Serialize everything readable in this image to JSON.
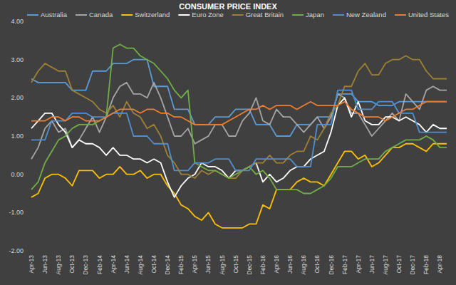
{
  "chart_data": {
    "type": "line",
    "title": "CONSUMER PRICE INDEX",
    "legend": "top",
    "grid": false,
    "categories": [
      "Apr-13",
      null,
      "Jun-13",
      null,
      "Aug-13",
      null,
      "Oct-13",
      null,
      "Dec-13",
      null,
      "Feb-14",
      null,
      "Apr-14",
      null,
      "Jun-14",
      null,
      "Aug-14",
      null,
      "Oct-14",
      null,
      "Dec-14",
      null,
      "Feb-15",
      null,
      "Apr-15",
      null,
      "Jun-15",
      null,
      "Aug-15",
      null,
      "Oct-15",
      null,
      "Dec-15",
      null,
      "Feb-16",
      null,
      "Apr-16",
      null,
      "Jun-16",
      null,
      "Aug-16",
      null,
      "Oct-16",
      null,
      "Dec-16",
      null,
      "Feb-17",
      null,
      "Apr-17",
      null,
      "Jun-17",
      null,
      "Aug-17",
      null,
      "Oct-17",
      null,
      "Dec-17",
      null,
      "Feb-18",
      null,
      "Apr-18",
      null
    ],
    "ylim": [
      -2,
      4
    ],
    "yticks": [
      {
        "value": 4,
        "label": "4.00"
      },
      {
        "value": 3,
        "label": "3.00"
      },
      {
        "value": 2,
        "label": "2.00"
      },
      {
        "value": 1,
        "label": "1.00"
      },
      {
        "value": 0,
        "label": "0.00"
      },
      {
        "value": -1,
        "label": "-1.00"
      },
      {
        "value": -2,
        "label": "-2.00"
      }
    ],
    "series": [
      {
        "name": "Australia",
        "color": "#5b9bd5",
        "values": [
          2.5,
          2.4,
          2.4,
          2.4,
          2.4,
          2.4,
          2.2,
          2.2,
          2.2,
          2.7,
          2.7,
          2.7,
          2.9,
          2.9,
          2.9,
          3.0,
          3.0,
          3.0,
          2.3,
          2.3,
          2.3,
          1.7,
          1.7,
          1.7,
          1.3,
          1.3,
          1.3,
          1.5,
          1.5,
          1.5,
          1.7,
          1.7,
          1.7,
          1.3,
          1.3,
          1.3,
          1.0,
          1.0,
          1.0,
          1.3,
          1.3,
          1.3,
          1.5,
          1.5,
          1.5,
          2.1,
          2.1,
          2.1,
          1.9,
          1.9,
          1.9,
          1.8,
          1.8,
          1.8,
          1.9,
          1.9,
          1.9,
          1.9,
          1.9,
          1.9,
          1.9,
          1.9
        ]
      },
      {
        "name": "Canada",
        "color": "#a5a5a5",
        "values": [
          0.4,
          0.7,
          1.2,
          1.4,
          1.1,
          1.2,
          0.7,
          0.9,
          1.2,
          1.5,
          1.1,
          1.5,
          2.0,
          2.3,
          2.4,
          2.1,
          2.1,
          2.0,
          2.4,
          2.0,
          1.5,
          1.0,
          1.0,
          1.2,
          0.8,
          0.9,
          1.0,
          1.3,
          1.3,
          1.0,
          1.0,
          1.4,
          1.6,
          2.0,
          1.4,
          1.3,
          1.7,
          1.5,
          1.5,
          1.3,
          1.1,
          1.3,
          1.5,
          1.2,
          1.5,
          2.1,
          2.0,
          1.6,
          1.6,
          1.3,
          1.0,
          1.2,
          1.4,
          1.6,
          1.4,
          2.1,
          1.9,
          1.7,
          2.2,
          2.3,
          2.2,
          2.2
        ]
      },
      {
        "name": "Switzerland",
        "color": "#ffc000",
        "values": [
          -0.6,
          -0.5,
          -0.1,
          0.0,
          0.0,
          -0.1,
          -0.3,
          0.1,
          0.1,
          0.1,
          -0.1,
          0.0,
          0.0,
          0.2,
          0.0,
          0.0,
          0.1,
          -0.1,
          0.0,
          0.0,
          -0.3,
          -0.5,
          -0.8,
          -0.9,
          -1.1,
          -1.2,
          -1.0,
          -1.3,
          -1.4,
          -1.4,
          -1.4,
          -1.4,
          -1.3,
          -1.3,
          -0.8,
          -0.9,
          -0.4,
          -0.4,
          -0.4,
          -0.2,
          -0.1,
          -0.2,
          -0.2,
          -0.3,
          0.0,
          0.3,
          0.6,
          0.6,
          0.4,
          0.5,
          0.2,
          0.3,
          0.5,
          0.7,
          0.7,
          0.8,
          0.8,
          0.7,
          0.6,
          0.8,
          0.8,
          0.8
        ]
      },
      {
        "name": "Euro Zone",
        "color": "#ffffff",
        "values": [
          1.2,
          1.4,
          1.6,
          1.6,
          1.3,
          1.1,
          0.7,
          0.9,
          0.8,
          0.8,
          0.7,
          0.5,
          0.7,
          0.5,
          0.5,
          0.4,
          0.4,
          0.3,
          0.4,
          0.3,
          -0.2,
          -0.6,
          -0.3,
          -0.1,
          0.0,
          0.3,
          0.2,
          0.2,
          0.1,
          -0.1,
          0.1,
          0.1,
          0.2,
          0.3,
          -0.2,
          0.0,
          -0.2,
          -0.1,
          0.1,
          0.2,
          0.2,
          0.4,
          0.5,
          0.6,
          1.1,
          1.8,
          2.0,
          1.5,
          1.9,
          1.4,
          1.3,
          1.3,
          1.5,
          1.5,
          1.4,
          1.5,
          1.4,
          1.3,
          1.1,
          1.3,
          1.2,
          1.2
        ]
      },
      {
        "name": "Great Britain",
        "color": "#9e8033",
        "values": [
          2.4,
          2.7,
          2.9,
          2.8,
          2.7,
          2.7,
          2.2,
          2.1,
          2.0,
          1.9,
          1.7,
          1.6,
          1.8,
          1.5,
          1.9,
          1.6,
          1.5,
          1.2,
          1.3,
          1.0,
          0.5,
          0.3,
          0.0,
          0.0,
          -0.1,
          0.1,
          0.0,
          0.1,
          0.0,
          -0.1,
          -0.1,
          0.1,
          0.2,
          0.3,
          0.3,
          0.5,
          0.3,
          0.3,
          0.5,
          0.6,
          0.6,
          1.0,
          0.9,
          1.2,
          1.6,
          1.8,
          2.3,
          2.3,
          2.7,
          2.9,
          2.6,
          2.6,
          2.9,
          3.0,
          3.0,
          3.1,
          3.0,
          3.0,
          2.7,
          2.5,
          2.5,
          2.5
        ]
      },
      {
        "name": "Japan",
        "color": "#70ad47",
        "values": [
          -0.4,
          -0.2,
          0.3,
          0.6,
          0.9,
          1.0,
          1.2,
          1.3,
          1.3,
          1.3,
          1.4,
          1.5,
          3.3,
          3.4,
          3.3,
          3.3,
          3.1,
          3.0,
          2.9,
          2.7,
          2.5,
          2.2,
          2.0,
          2.2,
          0.3,
          0.2,
          0.1,
          0.1,
          0.0,
          -0.1,
          0.0,
          0.1,
          0.2,
          0.0,
          0.1,
          -0.1,
          -0.4,
          -0.4,
          -0.4,
          -0.4,
          -0.5,
          -0.5,
          -0.4,
          -0.3,
          -0.1,
          0.2,
          0.2,
          0.2,
          0.3,
          0.4,
          0.4,
          0.4,
          0.6,
          0.7,
          0.8,
          0.9,
          0.9,
          0.9,
          1.0,
          0.9,
          0.7,
          0.7
        ]
      },
      {
        "name": "New Zealand",
        "color": "#4f8fcf",
        "values": [
          0.9,
          0.9,
          0.9,
          1.4,
          1.4,
          1.4,
          1.6,
          1.6,
          1.6,
          1.5,
          1.5,
          1.5,
          1.6,
          1.6,
          1.6,
          1.0,
          1.0,
          1.0,
          0.8,
          0.8,
          0.8,
          0.1,
          0.1,
          0.1,
          0.3,
          0.3,
          0.3,
          0.4,
          0.4,
          0.4,
          0.1,
          0.1,
          0.1,
          0.4,
          0.4,
          0.4,
          0.4,
          0.4,
          0.4,
          0.2,
          0.2,
          0.2,
          1.3,
          1.3,
          1.3,
          2.2,
          2.2,
          2.2,
          1.7,
          1.7,
          1.7,
          1.9,
          1.9,
          1.9,
          1.6,
          1.6,
          1.6,
          1.1,
          1.1,
          1.1,
          1.1,
          1.1
        ]
      },
      {
        "name": "United States",
        "color": "#ed7d31",
        "values": [
          1.4,
          1.4,
          1.4,
          1.5,
          1.5,
          1.4,
          1.5,
          1.5,
          1.4,
          1.4,
          1.4,
          1.5,
          1.6,
          1.7,
          1.7,
          1.7,
          1.6,
          1.7,
          1.7,
          1.6,
          1.6,
          1.5,
          1.5,
          1.4,
          1.3,
          1.3,
          1.3,
          1.3,
          1.3,
          1.4,
          1.5,
          1.6,
          1.7,
          1.7,
          1.8,
          1.7,
          1.8,
          1.8,
          1.8,
          1.7,
          1.8,
          1.9,
          1.8,
          1.8,
          1.8,
          1.8,
          1.9,
          1.7,
          1.6,
          1.5,
          1.5,
          1.5,
          1.4,
          1.5,
          1.6,
          1.7,
          1.7,
          1.8,
          1.9,
          1.9,
          1.9,
          1.9
        ]
      }
    ]
  }
}
